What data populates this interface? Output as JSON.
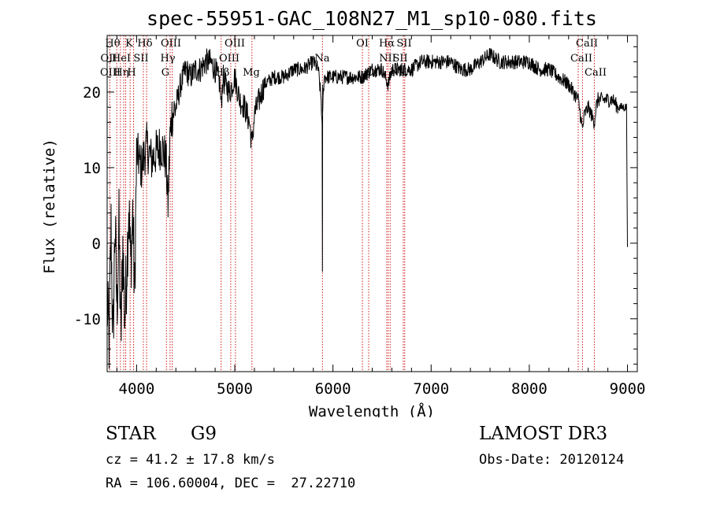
{
  "chart_data": {
    "type": "line",
    "title": "spec-55951-GAC_108N27_M1_sp10-080.fits",
    "xlabel": "Wavelength (Å)",
    "ylabel": "Flux (relative)",
    "xlim": [
      3700,
      9100
    ],
    "ylim": [
      -17,
      27.5
    ],
    "xticks": [
      4000,
      5000,
      6000,
      7000,
      8000,
      9000
    ],
    "yticks": [
      -10,
      0,
      10,
      20
    ],
    "series": [
      {
        "name": "flux",
        "x": [
          3700,
          3720,
          3740,
          3760,
          3780,
          3800,
          3820,
          3840,
          3860,
          3880,
          3900,
          3920,
          3940,
          3960,
          3980,
          4000,
          4050,
          4100,
          4150,
          4200,
          4250,
          4300,
          4320,
          4340,
          4360,
          4400,
          4450,
          4500,
          4550,
          4600,
          4650,
          4700,
          4750,
          4800,
          4850,
          4861,
          4880,
          4900,
          4950,
          5000,
          5050,
          5100,
          5150,
          5175,
          5200,
          5250,
          5300,
          5400,
          5500,
          5600,
          5700,
          5800,
          5850,
          5880,
          5890,
          5896,
          5910,
          5950,
          6000,
          6100,
          6200,
          6300,
          6400,
          6500,
          6563,
          6600,
          6700,
          6800,
          6900,
          7000,
          7100,
          7200,
          7300,
          7400,
          7500,
          7600,
          7700,
          7800,
          7900,
          8000,
          8100,
          8200,
          8300,
          8400,
          8498,
          8520,
          8542,
          8560,
          8600,
          8662,
          8680,
          8700,
          8800,
          8850,
          8900,
          8950,
          8990,
          9000
        ],
        "values": [
          -8,
          -13,
          2,
          -14,
          3,
          -9,
          2,
          -13,
          0,
          -10,
          -3,
          5,
          -3,
          4,
          -7,
          12,
          10,
          13,
          11,
          12,
          13,
          11,
          5,
          14,
          17,
          18,
          21,
          23,
          22,
          23,
          23,
          24,
          24,
          23,
          21,
          18,
          22,
          21,
          20,
          22,
          19,
          18,
          16,
          13,
          17,
          19,
          21,
          22,
          22,
          23,
          23,
          24,
          23,
          19,
          15,
          18,
          22,
          22,
          22,
          22,
          22,
          22,
          23,
          23,
          21,
          23,
          23,
          23,
          24,
          24,
          24,
          24,
          23,
          23,
          24,
          25,
          24,
          24,
          24,
          24,
          23,
          23,
          22,
          21,
          19,
          17,
          15,
          17,
          18,
          16,
          18,
          19,
          19,
          19,
          18,
          18,
          18,
          -0.5
        ]
      }
    ],
    "lines": [
      {
        "label": "Hθ",
        "x": 3798
      },
      {
        "label": "K",
        "x": 3934
      },
      {
        "label": "Hδ",
        "x": 4102
      },
      {
        "label": "OII",
        "x": 3727
      },
      {
        "label": "HeI",
        "x": 3889
      },
      {
        "label": "SII",
        "x": 4069
      },
      {
        "label": "OIII",
        "x": 3869
      },
      {
        "label": "Hη",
        "x": 3835
      },
      {
        "label": "H",
        "x": 3969
      },
      {
        "label": "OIII",
        "x": 4363
      },
      {
        "label": "Hγ",
        "x": 4341
      },
      {
        "label": "G",
        "x": 4304
      },
      {
        "label": "OIII",
        "x": 5007
      },
      {
        "label": "OIII",
        "x": 4959
      },
      {
        "label": "Hβ",
        "x": 4861
      },
      {
        "label": "Mg",
        "x": 5175
      },
      {
        "label": "Na",
        "x": 5893
      },
      {
        "label": "OI",
        "x": 6300
      },
      {
        "label": "OI",
        "x": 6364
      },
      {
        "label": "Hα",
        "x": 6563
      },
      {
        "label": "NII",
        "x": 6548
      },
      {
        "label": "NII",
        "x": 6583
      },
      {
        "label": "SII",
        "x": 6716
      },
      {
        "label": "SII",
        "x": 6731
      },
      {
        "label": "CaII",
        "x": 8542
      },
      {
        "label": "CaII",
        "x": 8498
      },
      {
        "label": "CaII",
        "x": 8662
      }
    ]
  },
  "info": {
    "object_type": "STAR",
    "subclass": "G9",
    "survey": "LAMOST DR3",
    "cz": "cz = 41.2 ± 17.8 km/s",
    "obs_date": "Obs-Date: 20120124",
    "coords": "RA = 106.60004, DEC =  27.22710"
  }
}
